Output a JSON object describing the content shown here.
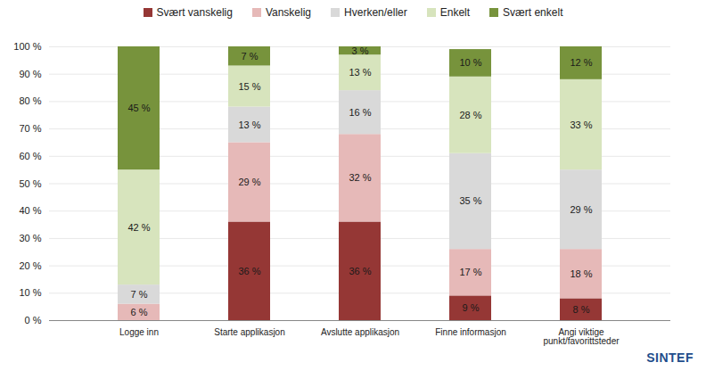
{
  "chart_data": {
    "type": "bar",
    "stacked": true,
    "data_labels": true,
    "grid": true,
    "legend": "top",
    "annotations": [
      "SINTEF"
    ],
    "categories": [
      "Logge inn",
      "Starte applikasjon",
      "Avslutte applikasjon",
      "Finne informasjon",
      "Angi viktige punkt/favorittsteder"
    ],
    "ylim": [
      0,
      100
    ],
    "yticks": [
      {
        "value": 0,
        "label": "0 %"
      },
      {
        "value": 10,
        "label": "10 %"
      },
      {
        "value": 20,
        "label": "20 %"
      },
      {
        "value": 30,
        "label": "30 %"
      },
      {
        "value": 40,
        "label": "40 %"
      },
      {
        "value": 50,
        "label": "50 %"
      },
      {
        "value": 60,
        "label": "60 %"
      },
      {
        "value": 70,
        "label": "70 %"
      },
      {
        "value": 80,
        "label": "80 %"
      },
      {
        "value": 90,
        "label": "90 %"
      },
      {
        "value": 100,
        "label": "100 %"
      }
    ],
    "series": [
      {
        "name": "Svært vanskelig",
        "color": "#953735",
        "values": [
          null,
          36,
          36,
          9,
          8
        ],
        "value_labels": [
          null,
          "36 %",
          "36 %",
          "9 %",
          "8 %"
        ]
      },
      {
        "name": "Vanskelig",
        "color": "#e6b9b8",
        "values": [
          6,
          29,
          32,
          17,
          18
        ],
        "value_labels": [
          "6 %",
          "29 %",
          "32 %",
          "17 %",
          "18 %"
        ]
      },
      {
        "name": "Hverken/eller",
        "color": "#d9d9d9",
        "values": [
          7,
          13,
          16,
          35,
          29
        ],
        "value_labels": [
          "7 %",
          "13 %",
          "16 %",
          "35 %",
          "29 %"
        ]
      },
      {
        "name": "Enkelt",
        "color": "#d7e4bd",
        "values": [
          42,
          15,
          13,
          28,
          33
        ],
        "value_labels": [
          "42 %",
          "15 %",
          "13 %",
          "28 %",
          "33 %"
        ]
      },
      {
        "name": "Svært enkelt",
        "color": "#77933c",
        "values": [
          45,
          7,
          3,
          10,
          12
        ],
        "value_labels": [
          "45 %",
          "7 %",
          "3 %",
          "10 %",
          "12 %"
        ]
      }
    ]
  }
}
